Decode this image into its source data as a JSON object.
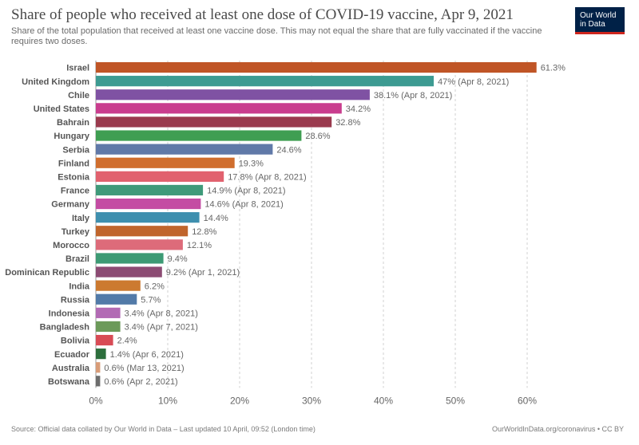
{
  "chart_data": {
    "type": "bar",
    "orientation": "horizontal",
    "title": "Share of people who received at least one dose of COVID-19 vaccine, Apr 9, 2021",
    "subtitle": "Share of the total population that received at least one vaccine dose. This may not equal the share that are fully vaccinated if the vaccine requires two doses.",
    "categories": [
      "Israel",
      "United Kingdom",
      "Chile",
      "United States",
      "Bahrain",
      "Hungary",
      "Serbia",
      "Finland",
      "Estonia",
      "France",
      "Germany",
      "Italy",
      "Turkey",
      "Morocco",
      "Brazil",
      "Dominican Republic",
      "India",
      "Russia",
      "Indonesia",
      "Bangladesh",
      "Bolivia",
      "Ecuador",
      "Australia",
      "Botswana"
    ],
    "values": [
      61.3,
      47,
      38.1,
      34.2,
      32.8,
      28.6,
      24.6,
      19.3,
      17.8,
      14.9,
      14.6,
      14.4,
      12.8,
      12.1,
      9.4,
      9.2,
      6.2,
      5.7,
      3.4,
      3.4,
      2.4,
      1.4,
      0.6,
      0.6
    ],
    "value_labels": [
      "61.3%",
      "47% (Apr 8, 2021)",
      "38.1% (Apr 8, 2021)",
      "34.2%",
      "32.8%",
      "28.6%",
      "24.6%",
      "19.3%",
      "17.8% (Apr 8, 2021)",
      "14.9% (Apr 8, 2021)",
      "14.6% (Apr 8, 2021)",
      "14.4%",
      "12.8%",
      "12.1%",
      "9.4%",
      "9.2% (Apr 1, 2021)",
      "6.2%",
      "5.7%",
      "3.4% (Apr 8, 2021)",
      "3.4% (Apr 7, 2021)",
      "2.4%",
      "1.4% (Apr 6, 2021)",
      "0.6% (Mar 13, 2021)",
      "0.6% (Apr 2, 2021)"
    ],
    "colors": [
      "#c05526",
      "#3d9b92",
      "#7f52a3",
      "#c93d8e",
      "#9a3a4e",
      "#3f9e52",
      "#6079a8",
      "#d06e2e",
      "#e1616e",
      "#3f9a7a",
      "#c44ca3",
      "#3e8fae",
      "#c0652c",
      "#dd6b7a",
      "#3d9a74",
      "#8c4b73",
      "#cc7a30",
      "#527aa8",
      "#b26ab4",
      "#6c9a5a",
      "#d84b55",
      "#2c6e3c",
      "#d89c78",
      "#6d6d6d"
    ],
    "xlim": [
      0,
      65
    ],
    "x_ticks": [
      "0%",
      "10%",
      "20%",
      "30%",
      "40%",
      "50%",
      "60%"
    ],
    "grid": true
  },
  "logo_text": [
    "Our World",
    "in Data"
  ],
  "source": "Source: Official data collated by Our World in Data – Last updated 10 April, 09:52 (London time)",
  "url": "OurWorldInData.org/coronavirus • CC BY"
}
